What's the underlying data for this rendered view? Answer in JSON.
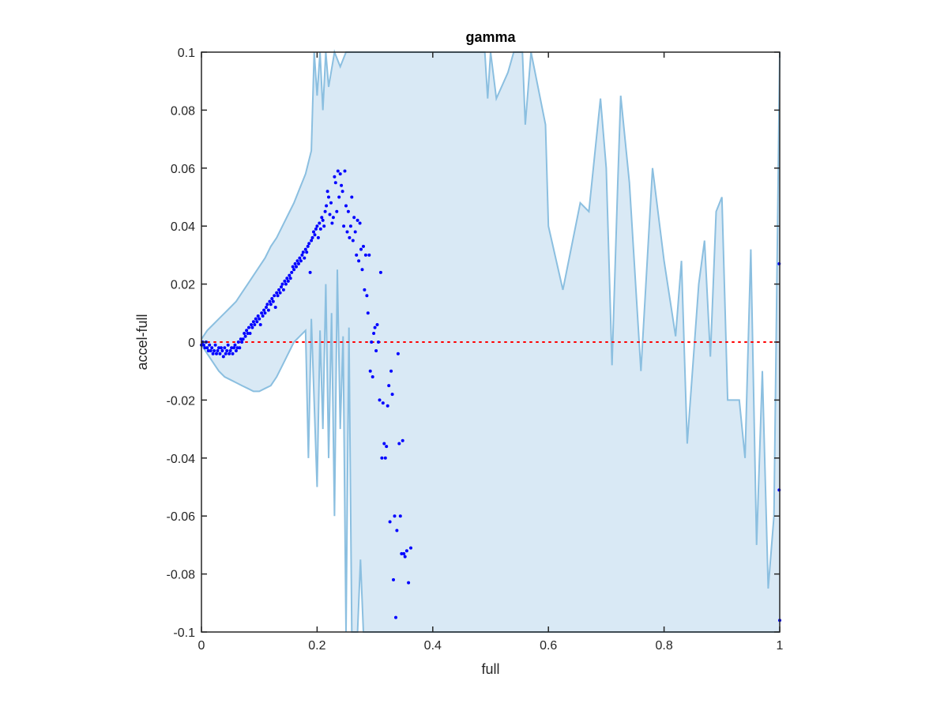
{
  "chart_data": {
    "type": "scatter",
    "title": "gamma",
    "xlabel": "full",
    "ylabel": "accel-full",
    "xlim": [
      0,
      1
    ],
    "ylim": [
      -0.1,
      0.1
    ],
    "x_ticks": [
      0,
      0.2,
      0.4,
      0.6,
      0.8,
      1
    ],
    "x_tick_labels": [
      "0",
      "0.2",
      "0.4",
      "0.6",
      "0.8",
      "1"
    ],
    "y_ticks": [
      -0.1,
      -0.08,
      -0.06,
      -0.04,
      -0.02,
      0,
      0.02,
      0.04,
      0.06,
      0.08,
      0.1
    ],
    "y_tick_labels": [
      "-0.1",
      "-0.08",
      "-0.06",
      "-0.04",
      "-0.02",
      "0",
      "0.02",
      "0.04",
      "0.06",
      "0.08",
      "0.1"
    ],
    "grid": false,
    "colors": {
      "points": "#0000ff",
      "band_fill": "#d9e9f5",
      "band_line": "#8bbfe0",
      "zero_line": "#ff0000",
      "axes": "#262626"
    },
    "zero_reference_line": {
      "y": 0,
      "style": "dotted"
    },
    "band_upper": [
      [
        0,
        0.001
      ],
      [
        0.01,
        0.004
      ],
      [
        0.02,
        0.006
      ],
      [
        0.03,
        0.008
      ],
      [
        0.04,
        0.01
      ],
      [
        0.05,
        0.012
      ],
      [
        0.06,
        0.014
      ],
      [
        0.07,
        0.017
      ],
      [
        0.08,
        0.02
      ],
      [
        0.09,
        0.023
      ],
      [
        0.1,
        0.026
      ],
      [
        0.11,
        0.029
      ],
      [
        0.12,
        0.033
      ],
      [
        0.13,
        0.036
      ],
      [
        0.14,
        0.04
      ],
      [
        0.15,
        0.044
      ],
      [
        0.16,
        0.048
      ],
      [
        0.17,
        0.053
      ],
      [
        0.18,
        0.058
      ],
      [
        0.19,
        0.066
      ],
      [
        0.195,
        0.1
      ],
      [
        0.2,
        0.085
      ],
      [
        0.205,
        0.1
      ],
      [
        0.21,
        0.08
      ],
      [
        0.215,
        0.1
      ],
      [
        0.22,
        0.088
      ],
      [
        0.23,
        0.1
      ],
      [
        0.24,
        0.095
      ],
      [
        0.25,
        0.1
      ],
      [
        0.3,
        0.1
      ],
      [
        0.35,
        0.1
      ],
      [
        0.4,
        0.1
      ],
      [
        0.45,
        0.1
      ],
      [
        0.48,
        0.1
      ],
      [
        0.49,
        0.1
      ],
      [
        0.495,
        0.084
      ],
      [
        0.5,
        0.1
      ],
      [
        0.51,
        0.084
      ],
      [
        0.53,
        0.093
      ],
      [
        0.54,
        0.1
      ],
      [
        0.555,
        0.1
      ],
      [
        0.56,
        0.075
      ],
      [
        0.57,
        0.1
      ],
      [
        0.595,
        0.075
      ],
      [
        0.6,
        0.04
      ],
      [
        0.625,
        0.018
      ],
      [
        0.655,
        0.048
      ],
      [
        0.67,
        0.045
      ],
      [
        0.69,
        0.084
      ],
      [
        0.7,
        0.06
      ],
      [
        0.71,
        -0.008
      ],
      [
        0.72,
        0.055
      ],
      [
        0.725,
        0.085
      ],
      [
        0.74,
        0.055
      ],
      [
        0.76,
        -0.01
      ],
      [
        0.78,
        0.06
      ],
      [
        0.8,
        0.028
      ],
      [
        0.82,
        0.002
      ],
      [
        0.83,
        0.028
      ],
      [
        0.84,
        -0.035
      ],
      [
        0.86,
        0.02
      ],
      [
        0.87,
        0.035
      ],
      [
        0.88,
        -0.005
      ],
      [
        0.89,
        0.045
      ],
      [
        0.9,
        0.05
      ],
      [
        0.91,
        -0.02
      ],
      [
        0.93,
        -0.02
      ],
      [
        0.94,
        -0.04
      ],
      [
        0.95,
        0.032
      ],
      [
        0.96,
        -0.07
      ],
      [
        0.97,
        -0.01
      ],
      [
        0.98,
        -0.085
      ],
      [
        0.99,
        -0.06
      ],
      [
        1,
        0.1
      ]
    ],
    "band_lower": [
      [
        0,
        -0.001
      ],
      [
        0.01,
        -0.004
      ],
      [
        0.02,
        -0.007
      ],
      [
        0.03,
        -0.01
      ],
      [
        0.04,
        -0.012
      ],
      [
        0.05,
        -0.013
      ],
      [
        0.06,
        -0.014
      ],
      [
        0.07,
        -0.015
      ],
      [
        0.08,
        -0.016
      ],
      [
        0.09,
        -0.017
      ],
      [
        0.1,
        -0.017
      ],
      [
        0.11,
        -0.016
      ],
      [
        0.12,
        -0.015
      ],
      [
        0.13,
        -0.012
      ],
      [
        0.14,
        -0.008
      ],
      [
        0.15,
        -0.004
      ],
      [
        0.16,
        0
      ],
      [
        0.17,
        0.002
      ],
      [
        0.18,
        0.004
      ],
      [
        0.185,
        -0.04
      ],
      [
        0.19,
        0.008
      ],
      [
        0.2,
        -0.05
      ],
      [
        0.205,
        0.004
      ],
      [
        0.21,
        -0.03
      ],
      [
        0.215,
        0.02
      ],
      [
        0.22,
        -0.04
      ],
      [
        0.225,
        0.01
      ],
      [
        0.23,
        -0.06
      ],
      [
        0.235,
        0.025
      ],
      [
        0.24,
        -0.03
      ],
      [
        0.245,
        0.002
      ],
      [
        0.25,
        -0.1
      ],
      [
        0.255,
        0.005
      ],
      [
        0.26,
        -0.1
      ],
      [
        0.27,
        -0.1
      ],
      [
        0.275,
        -0.075
      ],
      [
        0.28,
        -0.1
      ],
      [
        0.3,
        -0.1
      ],
      [
        0.4,
        -0.1
      ],
      [
        0.5,
        -0.1
      ],
      [
        0.6,
        -0.1
      ],
      [
        0.7,
        -0.1
      ],
      [
        0.8,
        -0.1
      ],
      [
        0.9,
        -0.1
      ],
      [
        1,
        -0.1
      ]
    ],
    "points": [
      [
        0,
        -0.001
      ],
      [
        0.002,
        0.0
      ],
      [
        0.004,
        -0.001
      ],
      [
        0.006,
        -0.002
      ],
      [
        0.008,
        0.0
      ],
      [
        0.01,
        -0.002
      ],
      [
        0.012,
        -0.003
      ],
      [
        0.014,
        -0.001
      ],
      [
        0.016,
        -0.003
      ],
      [
        0.018,
        -0.002
      ],
      [
        0.02,
        -0.004
      ],
      [
        0.022,
        -0.003
      ],
      [
        0.024,
        -0.001
      ],
      [
        0.026,
        -0.004
      ],
      [
        0.028,
        -0.003
      ],
      [
        0.03,
        -0.002
      ],
      [
        0.032,
        -0.004
      ],
      [
        0.034,
        -0.002
      ],
      [
        0.036,
        -0.003
      ],
      [
        0.038,
        -0.005
      ],
      [
        0.04,
        -0.002
      ],
      [
        0.042,
        -0.004
      ],
      [
        0.044,
        -0.003
      ],
      [
        0.046,
        -0.001
      ],
      [
        0.048,
        -0.004
      ],
      [
        0.05,
        -0.003
      ],
      [
        0.052,
        -0.002
      ],
      [
        0.054,
        -0.004
      ],
      [
        0.056,
        -0.002
      ],
      [
        0.058,
        -0.001
      ],
      [
        0.06,
        -0.003
      ],
      [
        0.062,
        -0.002
      ],
      [
        0.064,
        0.0
      ],
      [
        0.066,
        -0.002
      ],
      [
        0.068,
        0.001
      ],
      [
        0.07,
        0.0
      ],
      [
        0.072,
        0.001
      ],
      [
        0.074,
        0.003
      ],
      [
        0.076,
        0.002
      ],
      [
        0.078,
        0.004
      ],
      [
        0.08,
        0.003
      ],
      [
        0.082,
        0.005
      ],
      [
        0.084,
        0.003
      ],
      [
        0.086,
        0.006
      ],
      [
        0.088,
        0.005
      ],
      [
        0.09,
        0.007
      ],
      [
        0.092,
        0.006
      ],
      [
        0.094,
        0.008
      ],
      [
        0.096,
        0.007
      ],
      [
        0.098,
        0.009
      ],
      [
        0.1,
        0.008
      ],
      [
        0.102,
        0.006
      ],
      [
        0.104,
        0.01
      ],
      [
        0.106,
        0.009
      ],
      [
        0.108,
        0.011
      ],
      [
        0.11,
        0.01
      ],
      [
        0.112,
        0.012
      ],
      [
        0.114,
        0.013
      ],
      [
        0.116,
        0.011
      ],
      [
        0.118,
        0.014
      ],
      [
        0.12,
        0.013
      ],
      [
        0.122,
        0.015
      ],
      [
        0.124,
        0.014
      ],
      [
        0.126,
        0.016
      ],
      [
        0.128,
        0.012
      ],
      [
        0.13,
        0.017
      ],
      [
        0.132,
        0.016
      ],
      [
        0.134,
        0.018
      ],
      [
        0.136,
        0.017
      ],
      [
        0.138,
        0.019
      ],
      [
        0.14,
        0.02
      ],
      [
        0.142,
        0.018
      ],
      [
        0.144,
        0.021
      ],
      [
        0.146,
        0.02
      ],
      [
        0.148,
        0.022
      ],
      [
        0.15,
        0.021
      ],
      [
        0.152,
        0.023
      ],
      [
        0.154,
        0.022
      ],
      [
        0.156,
        0.024
      ],
      [
        0.158,
        0.026
      ],
      [
        0.16,
        0.025
      ],
      [
        0.162,
        0.027
      ],
      [
        0.164,
        0.026
      ],
      [
        0.166,
        0.028
      ],
      [
        0.168,
        0.027
      ],
      [
        0.17,
        0.029
      ],
      [
        0.172,
        0.028
      ],
      [
        0.174,
        0.03
      ],
      [
        0.176,
        0.031
      ],
      [
        0.178,
        0.029
      ],
      [
        0.18,
        0.032
      ],
      [
        0.182,
        0.031
      ],
      [
        0.184,
        0.033
      ],
      [
        0.186,
        0.034
      ],
      [
        0.188,
        0.024
      ],
      [
        0.19,
        0.035
      ],
      [
        0.192,
        0.036
      ],
      [
        0.194,
        0.038
      ],
      [
        0.196,
        0.037
      ],
      [
        0.198,
        0.039
      ],
      [
        0.2,
        0.04
      ],
      [
        0.202,
        0.036
      ],
      [
        0.204,
        0.041
      ],
      [
        0.206,
        0.039
      ],
      [
        0.208,
        0.043
      ],
      [
        0.21,
        0.042
      ],
      [
        0.212,
        0.04
      ],
      [
        0.214,
        0.045
      ],
      [
        0.216,
        0.047
      ],
      [
        0.218,
        0.052
      ],
      [
        0.22,
        0.05
      ],
      [
        0.222,
        0.044
      ],
      [
        0.224,
        0.048
      ],
      [
        0.226,
        0.041
      ],
      [
        0.228,
        0.043
      ],
      [
        0.23,
        0.057
      ],
      [
        0.232,
        0.055
      ],
      [
        0.234,
        0.045
      ],
      [
        0.236,
        0.059
      ],
      [
        0.238,
        0.05
      ],
      [
        0.24,
        0.058
      ],
      [
        0.242,
        0.054
      ],
      [
        0.244,
        0.052
      ],
      [
        0.246,
        0.04
      ],
      [
        0.248,
        0.059
      ],
      [
        0.25,
        0.047
      ],
      [
        0.252,
        0.038
      ],
      [
        0.254,
        0.045
      ],
      [
        0.256,
        0.036
      ],
      [
        0.258,
        0.04
      ],
      [
        0.26,
        0.05
      ],
      [
        0.262,
        0.035
      ],
      [
        0.264,
        0.043
      ],
      [
        0.266,
        0.038
      ],
      [
        0.268,
        0.03
      ],
      [
        0.27,
        0.042
      ],
      [
        0.272,
        0.028
      ],
      [
        0.274,
        0.041
      ],
      [
        0.276,
        0.032
      ],
      [
        0.278,
        0.025
      ],
      [
        0.28,
        0.033
      ],
      [
        0.282,
        0.018
      ],
      [
        0.284,
        0.03
      ],
      [
        0.286,
        0.016
      ],
      [
        0.288,
        0.01
      ],
      [
        0.29,
        0.03
      ],
      [
        0.292,
        -0.01
      ],
      [
        0.294,
        0.0
      ],
      [
        0.296,
        -0.012
      ],
      [
        0.298,
        0.003
      ],
      [
        0.3,
        0.005
      ],
      [
        0.302,
        -0.003
      ],
      [
        0.304,
        0.006
      ],
      [
        0.306,
        0.0
      ],
      [
        0.308,
        -0.02
      ],
      [
        0.31,
        0.024
      ],
      [
        0.312,
        -0.04
      ],
      [
        0.314,
        -0.021
      ],
      [
        0.316,
        -0.035
      ],
      [
        0.318,
        -0.04
      ],
      [
        0.32,
        -0.036
      ],
      [
        0.322,
        -0.022
      ],
      [
        0.324,
        -0.015
      ],
      [
        0.326,
        -0.062
      ],
      [
        0.328,
        -0.01
      ],
      [
        0.33,
        -0.018
      ],
      [
        0.332,
        -0.082
      ],
      [
        0.334,
        -0.06
      ],
      [
        0.336,
        -0.095
      ],
      [
        0.338,
        -0.065
      ],
      [
        0.34,
        -0.004
      ],
      [
        0.342,
        -0.035
      ],
      [
        0.344,
        -0.06
      ],
      [
        0.346,
        -0.073
      ],
      [
        0.348,
        -0.034
      ],
      [
        0.35,
        -0.073
      ],
      [
        0.352,
        -0.074
      ],
      [
        0.355,
        -0.072
      ],
      [
        0.358,
        -0.083
      ],
      [
        0.362,
        -0.071
      ],
      [
        0.999,
        0.027
      ],
      [
        0.999,
        -0.051
      ],
      [
        1,
        -0.096
      ]
    ]
  }
}
